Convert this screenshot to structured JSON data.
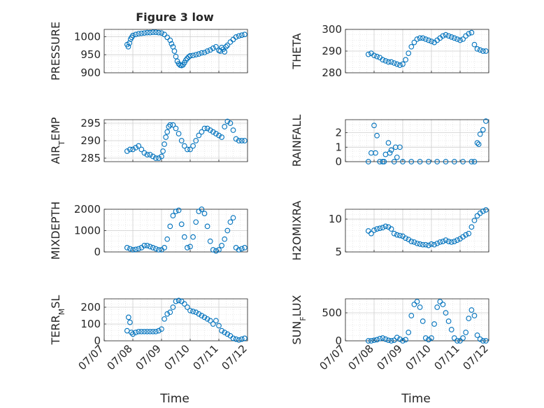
{
  "figure": {
    "title": "Figure 3 low",
    "xlabel": "Time",
    "marker_color": "#0072bd",
    "grid_color": "#d9d9d9",
    "axis_color": "#262626",
    "background": "#ffffff"
  },
  "chart_data": [
    {
      "type": "scatter",
      "ylabel": "PRESSURE",
      "ylim": [
        900,
        1020
      ],
      "yticks": [
        900,
        950,
        1000
      ],
      "grid": true,
      "x": [
        "07/07 19:12",
        "07/07 20:10",
        "07/07 21:07",
        "07/07 22:05",
        "07/07 23:02",
        "07/08 00:00",
        "07/08 02:24",
        "07/08 04:48",
        "07/08 07:12",
        "07/08 09:36",
        "07/08 12:00",
        "07/08 14:24",
        "07/08 16:48",
        "07/08 19:12",
        "07/08 21:36",
        "07/09 00:00",
        "07/09 02:24",
        "07/09 04:48",
        "07/09 07:12",
        "07/09 08:24",
        "07/09 09:36",
        "07/09 10:48",
        "07/09 12:00",
        "07/09 13:12",
        "07/09 14:24",
        "07/09 15:36",
        "07/09 16:48",
        "07/09 18:00",
        "07/09 19:12",
        "07/09 20:24",
        "07/09 21:36",
        "07/09 22:48",
        "07/10 00:00",
        "07/10 02:24",
        "07/10 04:48",
        "07/10 07:12",
        "07/10 09:36",
        "07/10 12:00",
        "07/10 14:24",
        "07/10 16:48",
        "07/10 19:12",
        "07/10 21:36",
        "07/11 00:00",
        "07/11 01:12",
        "07/11 02:24",
        "07/11 03:36",
        "07/11 04:48",
        "07/11 06:00",
        "07/11 07:12",
        "07/11 09:36",
        "07/11 12:00",
        "07/11 14:24",
        "07/11 16:48",
        "07/11 19:12",
        "07/11 21:36"
      ],
      "y": [
        978,
        972,
        982,
        993,
        998,
        1003,
        1006,
        1008,
        1009,
        1010,
        1011,
        1011,
        1012,
        1012,
        1011,
        1010,
        1006,
        998,
        990,
        980,
        972,
        960,
        945,
        932,
        925,
        921,
        920,
        922,
        928,
        935,
        940,
        944,
        947,
        948,
        950,
        952,
        955,
        956,
        960,
        963,
        968,
        972,
        962,
        960,
        970,
        965,
        958,
        972,
        976,
        985,
        992,
        999,
        1002,
        1004,
        1006
      ]
    },
    {
      "type": "scatter",
      "ylabel": "THETA",
      "ylim": [
        280,
        300
      ],
      "yticks": [
        280,
        290,
        300
      ],
      "grid": true,
      "x": [
        "07/07 19:12",
        "07/07 21:36",
        "07/08 00:00",
        "07/08 02:24",
        "07/08 04:48",
        "07/08 07:12",
        "07/08 09:36",
        "07/08 12:00",
        "07/08 14:24",
        "07/08 16:48",
        "07/08 19:12",
        "07/08 21:36",
        "07/09 00:00",
        "07/09 02:24",
        "07/09 04:48",
        "07/09 07:12",
        "07/09 09:36",
        "07/09 12:00",
        "07/09 14:24",
        "07/09 16:48",
        "07/09 19:12",
        "07/09 21:36",
        "07/10 00:00",
        "07/10 02:24",
        "07/10 04:48",
        "07/10 07:12",
        "07/10 09:36",
        "07/10 12:00",
        "07/10 14:24",
        "07/10 16:48",
        "07/10 19:12",
        "07/10 21:36",
        "07/11 00:00",
        "07/11 02:24",
        "07/11 04:48",
        "07/11 07:12",
        "07/11 09:36",
        "07/11 12:00",
        "07/11 14:24",
        "07/11 16:48",
        "07/11 19:12",
        "07/11 21:36"
      ],
      "y": [
        288.5,
        289,
        288,
        287.5,
        287,
        286,
        285.5,
        285,
        285,
        284.5,
        284,
        283.5,
        284,
        286,
        289,
        292,
        294,
        295.5,
        296,
        296,
        295.5,
        295,
        294.5,
        294,
        295,
        296,
        297,
        297.5,
        297,
        296.5,
        296,
        295.5,
        295,
        295.5,
        297,
        298,
        298.5,
        293,
        291,
        290.5,
        290,
        290
      ]
    },
    {
      "type": "scatter",
      "ylabel": "AIR_TEMP",
      "ylim": [
        284,
        296
      ],
      "yticks": [
        285,
        290,
        295
      ],
      "grid": true,
      "x": [
        "07/07 19:12",
        "07/07 21:36",
        "07/08 00:00",
        "07/08 02:24",
        "07/08 04:48",
        "07/08 07:12",
        "07/08 09:36",
        "07/08 12:00",
        "07/08 14:24",
        "07/08 16:48",
        "07/08 19:12",
        "07/08 21:36",
        "07/09 00:00",
        "07/09 01:12",
        "07/09 02:24",
        "07/09 03:36",
        "07/09 04:48",
        "07/09 06:00",
        "07/09 07:12",
        "07/09 09:36",
        "07/09 12:00",
        "07/09 14:24",
        "07/09 16:48",
        "07/09 19:12",
        "07/09 21:36",
        "07/10 00:00",
        "07/10 02:24",
        "07/10 04:48",
        "07/10 07:12",
        "07/10 09:36",
        "07/10 12:00",
        "07/10 14:24",
        "07/10 16:48",
        "07/10 19:12",
        "07/10 21:36",
        "07/11 00:00",
        "07/11 02:24",
        "07/11 04:48",
        "07/11 07:12",
        "07/11 09:36",
        "07/11 12:00",
        "07/11 14:24",
        "07/11 16:48",
        "07/11 19:12",
        "07/11 21:36"
      ],
      "y": [
        287,
        287.5,
        287.5,
        288,
        288.5,
        287.5,
        286.5,
        286,
        286,
        285.5,
        285,
        285,
        285.5,
        287,
        289,
        291,
        292.5,
        294,
        294.5,
        294.5,
        293.5,
        292,
        290,
        288.5,
        287.5,
        287.5,
        288.5,
        290,
        291.5,
        292.5,
        293.5,
        293.5,
        293,
        292.5,
        292,
        291.5,
        291,
        294,
        295.5,
        295,
        293,
        290.5,
        290,
        290,
        290
      ]
    },
    {
      "type": "scatter",
      "ylabel": "RAINFALL",
      "ylim": [
        0,
        2.9
      ],
      "yticks": [
        0,
        1,
        2
      ],
      "grid": true,
      "x": [
        "07/07 19:12",
        "07/07 21:36",
        "07/08 00:00",
        "07/08 01:12",
        "07/08 02:24",
        "07/08 04:48",
        "07/08 07:12",
        "07/08 08:24",
        "07/08 09:36",
        "07/08 12:00",
        "07/08 13:12",
        "07/08 14:24",
        "07/08 16:48",
        "07/08 18:00",
        "07/08 19:12",
        "07/08 21:36",
        "07/09 00:00",
        "07/09 07:12",
        "07/09 14:24",
        "07/09 21:36",
        "07/10 04:48",
        "07/10 12:00",
        "07/10 19:12",
        "07/11 02:24",
        "07/11 09:36",
        "07/11 12:00",
        "07/11 14:24",
        "07/11 15:36",
        "07/11 16:48",
        "07/11 19:12",
        "07/11 21:36"
      ],
      "y": [
        0,
        0.6,
        2.5,
        0.6,
        1.8,
        0,
        0,
        0,
        0.5,
        1.3,
        0.6,
        0.8,
        0,
        1.0,
        0.3,
        1.0,
        0,
        0,
        0,
        0,
        0,
        0,
        0,
        0,
        0,
        0,
        1.3,
        1.2,
        1.9,
        2.2,
        2.8
      ]
    },
    {
      "type": "scatter",
      "ylabel": "MIXDEPTH",
      "ylim": [
        0,
        2000
      ],
      "yticks": [
        0,
        1000,
        2000
      ],
      "grid": true,
      "x": [
        "07/07 19:12",
        "07/07 21:36",
        "07/08 00:00",
        "07/08 02:24",
        "07/08 04:48",
        "07/08 07:12",
        "07/08 09:36",
        "07/08 12:00",
        "07/08 14:24",
        "07/08 16:48",
        "07/08 19:12",
        "07/08 21:36",
        "07/09 00:00",
        "07/09 02:24",
        "07/09 04:48",
        "07/09 07:12",
        "07/09 09:36",
        "07/09 12:00",
        "07/09 14:24",
        "07/09 16:48",
        "07/09 19:12",
        "07/09 21:36",
        "07/10 00:00",
        "07/10 02:24",
        "07/10 04:48",
        "07/10 07:12",
        "07/10 09:36",
        "07/10 12:00",
        "07/10 14:24",
        "07/10 16:48",
        "07/10 19:12",
        "07/10 21:36",
        "07/11 00:00",
        "07/11 02:24",
        "07/11 04:48",
        "07/11 07:12",
        "07/11 09:36",
        "07/11 12:00",
        "07/11 14:24",
        "07/11 16:48",
        "07/11 19:12",
        "07/11 21:36"
      ],
      "y": [
        200,
        150,
        100,
        120,
        150,
        200,
        300,
        300,
        250,
        200,
        150,
        100,
        100,
        200,
        600,
        1200,
        1700,
        1900,
        1950,
        1300,
        700,
        200,
        250,
        700,
        1400,
        1900,
        2000,
        1800,
        1200,
        500,
        100,
        50,
        100,
        300,
        600,
        1000,
        1400,
        1600,
        200,
        100,
        150,
        200
      ]
    },
    {
      "type": "scatter",
      "ylabel": "H2OMIXRA",
      "ylim": [
        5,
        11.5
      ],
      "yticks": [
        5,
        10
      ],
      "grid": true,
      "x": [
        "07/07 19:12",
        "07/07 21:36",
        "07/08 00:00",
        "07/08 02:24",
        "07/08 04:48",
        "07/08 07:12",
        "07/08 09:36",
        "07/08 12:00",
        "07/08 14:24",
        "07/08 16:48",
        "07/08 19:12",
        "07/08 21:36",
        "07/09 00:00",
        "07/09 02:24",
        "07/09 04:48",
        "07/09 07:12",
        "07/09 09:36",
        "07/09 12:00",
        "07/09 14:24",
        "07/09 16:48",
        "07/09 19:12",
        "07/09 21:36",
        "07/10 00:00",
        "07/10 02:24",
        "07/10 04:48",
        "07/10 07:12",
        "07/10 09:36",
        "07/10 12:00",
        "07/10 14:24",
        "07/10 16:48",
        "07/10 19:12",
        "07/10 21:36",
        "07/11 00:00",
        "07/11 02:24",
        "07/11 04:48",
        "07/11 07:12",
        "07/11 09:36",
        "07/11 12:00",
        "07/11 14:24",
        "07/11 16:48",
        "07/11 19:12",
        "07/11 21:36"
      ],
      "y": [
        8.2,
        7.8,
        8.3,
        8.5,
        8.6,
        8.7,
        8.9,
        8.8,
        8.5,
        7.8,
        7.6,
        7.5,
        7.4,
        7.1,
        6.9,
        6.6,
        6.5,
        6.3,
        6.2,
        6.1,
        6.1,
        6.0,
        6.2,
        6.1,
        6.3,
        6.5,
        6.6,
        6.8,
        6.6,
        6.5,
        6.6,
        6.8,
        7.0,
        7.3,
        7.6,
        7.8,
        8.8,
        9.8,
        10.5,
        10.9,
        11.2,
        11.4
      ]
    },
    {
      "type": "scatter",
      "ylabel": "TERR_MSL",
      "ylim": [
        0,
        250
      ],
      "yticks": [
        0,
        100,
        200
      ],
      "grid": true,
      "x": [
        "07/07 19:12",
        "07/07 20:24",
        "07/07 21:36",
        "07/07 22:48",
        "07/08 00:00",
        "07/08 02:24",
        "07/08 04:48",
        "07/08 07:12",
        "07/08 09:36",
        "07/08 12:00",
        "07/08 14:24",
        "07/08 16:48",
        "07/08 19:12",
        "07/08 21:36",
        "07/09 00:00",
        "07/09 02:24",
        "07/09 04:48",
        "07/09 07:12",
        "07/09 09:36",
        "07/09 12:00",
        "07/09 14:24",
        "07/09 16:48",
        "07/09 19:12",
        "07/09 21:36",
        "07/10 00:00",
        "07/10 02:24",
        "07/10 04:48",
        "07/10 07:12",
        "07/10 09:36",
        "07/10 12:00",
        "07/10 14:24",
        "07/10 16:48",
        "07/10 19:12",
        "07/10 21:36",
        "07/11 00:00",
        "07/11 02:24",
        "07/11 04:48",
        "07/11 07:12",
        "07/11 09:36",
        "07/11 12:00",
        "07/11 14:24",
        "07/11 16:48",
        "07/11 19:12",
        "07/11 21:36"
      ],
      "y": [
        60,
        140,
        110,
        50,
        40,
        50,
        55,
        55,
        55,
        55,
        55,
        55,
        55,
        60,
        70,
        130,
        160,
        170,
        200,
        235,
        240,
        235,
        220,
        200,
        180,
        175,
        170,
        160,
        150,
        140,
        130,
        120,
        100,
        120,
        90,
        60,
        50,
        40,
        30,
        15,
        10,
        5,
        10,
        15
      ]
    },
    {
      "type": "scatter",
      "ylabel": "SUN_FLUX",
      "ylim": [
        0,
        750
      ],
      "yticks": [
        0,
        500
      ],
      "grid": true,
      "x": [
        "07/07 19:12",
        "07/07 21:36",
        "07/08 00:00",
        "07/08 02:24",
        "07/08 04:48",
        "07/08 07:12",
        "07/08 09:36",
        "07/08 12:00",
        "07/08 14:24",
        "07/08 16:48",
        "07/08 19:12",
        "07/08 21:36",
        "07/09 00:00",
        "07/09 02:24",
        "07/09 04:48",
        "07/09 07:12",
        "07/09 09:36",
        "07/09 12:00",
        "07/09 14:24",
        "07/09 16:48",
        "07/09 19:12",
        "07/09 21:36",
        "07/10 00:00",
        "07/10 02:24",
        "07/10 04:48",
        "07/10 07:12",
        "07/10 09:36",
        "07/10 12:00",
        "07/10 14:24",
        "07/10 16:48",
        "07/10 19:12",
        "07/10 21:36",
        "07/11 00:00",
        "07/11 02:24",
        "07/11 04:48",
        "07/11 07:12",
        "07/11 09:36",
        "07/11 12:00",
        "07/11 14:24",
        "07/11 16:48",
        "07/11 19:12",
        "07/11 21:36"
      ],
      "y": [
        0,
        0,
        10,
        20,
        40,
        50,
        30,
        10,
        0,
        10,
        60,
        30,
        0,
        20,
        150,
        450,
        650,
        700,
        600,
        350,
        50,
        20,
        50,
        300,
        600,
        700,
        650,
        500,
        350,
        200,
        50,
        0,
        0,
        50,
        150,
        400,
        550,
        450,
        100,
        30,
        0,
        0
      ]
    }
  ],
  "x_axis": {
    "ticks": [
      "07/07",
      "07/08",
      "07/09",
      "07/10",
      "07/11",
      "07/12"
    ]
  }
}
